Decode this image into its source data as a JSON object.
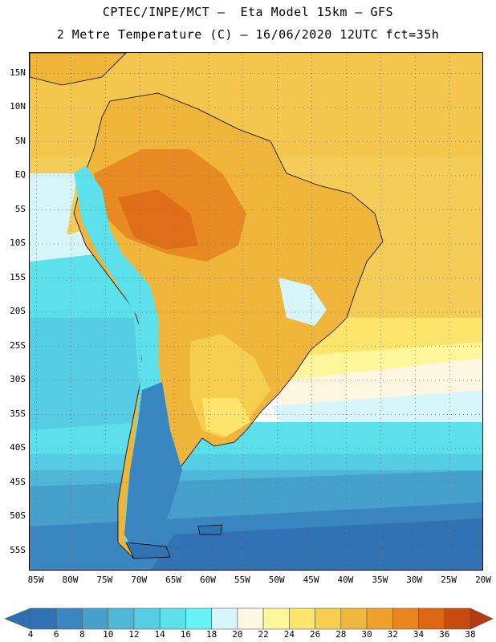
{
  "header": {
    "line1": "CPTEC/INPE/MCT –  Eta Model 15km – GFS",
    "line2": "2 Metre Temperature (C) – 16/06/2020 12UTC fct=35h"
  },
  "axes": {
    "lat_labels": [
      "15N",
      "10N",
      "5N",
      "EQ",
      "5S",
      "10S",
      "15S",
      "20S",
      "25S",
      "30S",
      "35S",
      "40S",
      "45S",
      "50S",
      "55S"
    ],
    "lon_labels": [
      "85W",
      "80W",
      "75W",
      "70W",
      "65W",
      "60W",
      "55W",
      "50W",
      "45W",
      "40W",
      "35W",
      "30W",
      "25W",
      "20W"
    ],
    "lat_range": [
      18,
      -58
    ],
    "lon_range": [
      -86,
      -20
    ],
    "grid": "dotted"
  },
  "colorbar": {
    "ticks": [
      "4",
      "6",
      "8",
      "10",
      "12",
      "14",
      "16",
      "18",
      "20",
      "22",
      "24",
      "26",
      "28",
      "30",
      "32",
      "34",
      "36",
      "38"
    ],
    "low_color": "#2e6fb0",
    "high_color": "#b83a10",
    "colors": [
      "#3072b4",
      "#3a86c0",
      "#45a0cc",
      "#4fb8d8",
      "#55cde2",
      "#5ce0ec",
      "#66f2f6",
      "#d7f6fb",
      "#fdf6e0",
      "#fff59a",
      "#fde46c",
      "#f6cf50",
      "#efb83c",
      "#eea22c",
      "#e9861f",
      "#de6714",
      "#c94a0f"
    ]
  },
  "legend_units": "C"
}
